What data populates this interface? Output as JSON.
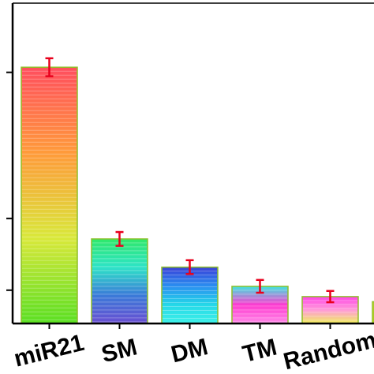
{
  "chart_data": {
    "type": "bar",
    "categories": [
      "miR21",
      "SM",
      "DM",
      "TM",
      "Random",
      ""
    ],
    "values": [
      1.0,
      0.33,
      0.22,
      0.145,
      0.105,
      0.085
    ],
    "errors": [
      0.035,
      0.027,
      0.027,
      0.025,
      0.022,
      0.0
    ],
    "ylim": [
      0,
      1.25
    ],
    "title": "",
    "xlabel": "",
    "ylabel": "",
    "error_bar_color": "#e8001c",
    "bar_outline_color": "#8fbf2a",
    "bar_gradients": [
      [
        "#ff4e5e",
        "#ff9a3a",
        "#d9e83a",
        "#5adf22"
      ],
      [
        "#2fe86a",
        "#2ee4c7",
        "#3a7ad8",
        "#6a4fd2"
      ],
      [
        "#3a3fd8",
        "#2a8ef0",
        "#24d8e8",
        "#3ff0e8"
      ],
      [
        "#3ee6e0",
        "#ff3ad0",
        "#ff8ae8"
      ],
      [
        "#ff44e6",
        "#ff9ad8",
        "#f0f05a"
      ],
      [
        "#fbf03a",
        "#f6e800"
      ]
    ]
  }
}
